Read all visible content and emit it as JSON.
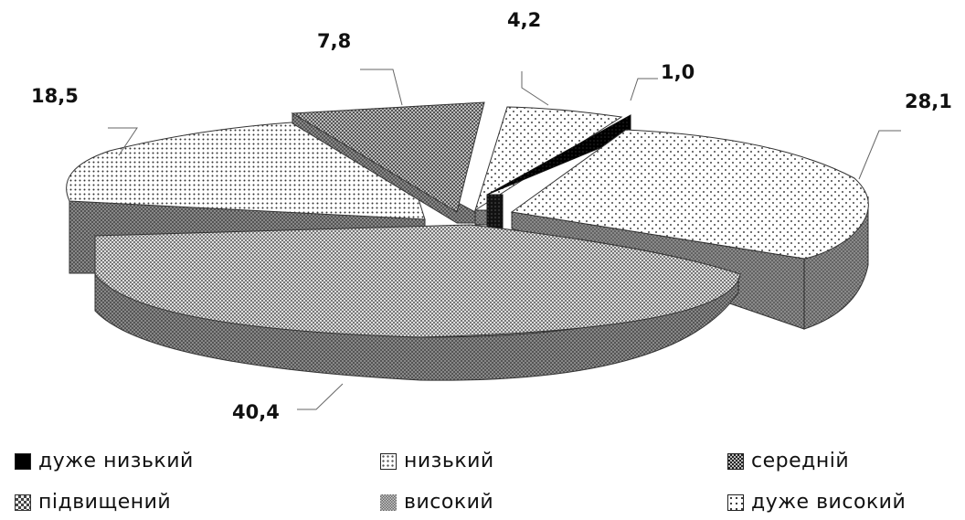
{
  "chart_data": {
    "type": "pie",
    "title": "",
    "style": "3d-exploded",
    "categories": [
      "дуже низький",
      "низький",
      "середній",
      "підвищений",
      "високий",
      "дуже високий"
    ],
    "values": [
      1.0,
      4.2,
      40.4,
      18.5,
      7.8,
      28.1
    ],
    "data_labels": [
      "1,0",
      "4,2",
      "40,4",
      "18,5",
      "7,8",
      "28,1"
    ],
    "legend_position": "bottom",
    "legend": [
      {
        "label": "дуже низький",
        "pattern": "solid-black"
      },
      {
        "label": "низький",
        "pattern": "sparse-dots"
      },
      {
        "label": "середній",
        "pattern": "dense-checker"
      },
      {
        "label": "підвищений",
        "pattern": "coarse-checker"
      },
      {
        "label": "високий",
        "pattern": "fine-checker"
      },
      {
        "label": "дуже високий",
        "pattern": "fine-dots"
      }
    ]
  }
}
